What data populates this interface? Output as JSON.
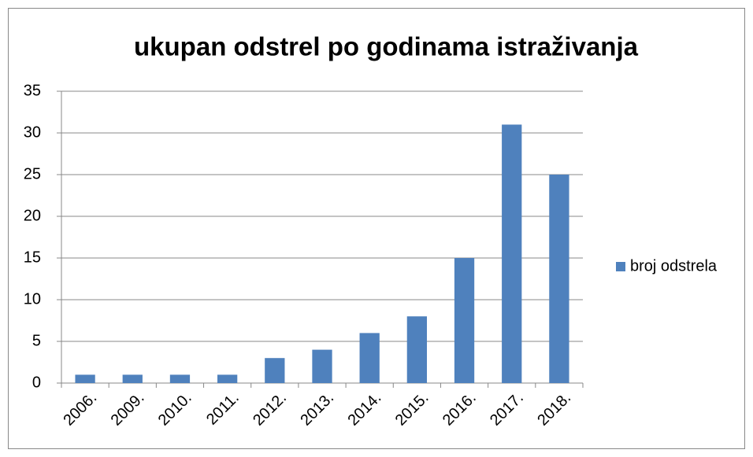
{
  "chart_data": {
    "type": "bar",
    "title": "ukupan odstrel po godinama istraživanja",
    "categories": [
      "2006.",
      "2009.",
      "2010.",
      "2011.",
      "2012.",
      "2013.",
      "2014.",
      "2015.",
      "2016.",
      "2017.",
      "2018."
    ],
    "series": [
      {
        "name": "broj odstrela",
        "color": "#4f81bd",
        "values": [
          1,
          1,
          1,
          1,
          3,
          4,
          6,
          8,
          15,
          31,
          25
        ]
      }
    ],
    "ylim": [
      0,
      35
    ],
    "yticks": [
      0,
      5,
      10,
      15,
      20,
      25,
      30,
      35
    ],
    "grid": true,
    "legend": "right"
  }
}
